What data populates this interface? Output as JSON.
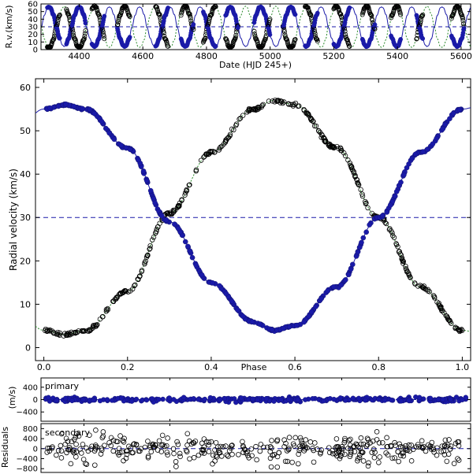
{
  "chart_data": [
    {
      "type": "scatter",
      "panel": "timeseries",
      "xlabel": "Date (HJD 245+)",
      "ylabel": "R.v.(km/s)",
      "xlim": [
        4280,
        5630
      ],
      "ylim": [
        0,
        60
      ],
      "xticks": [
        "4400",
        "4600",
        "4800",
        "5000",
        "5200",
        "5400",
        "5600"
      ],
      "yticks": [
        "0",
        "10",
        "20",
        "30",
        "40",
        "50",
        "60"
      ],
      "period_days": 95,
      "t0": 4300,
      "gamma": 30,
      "amplitude_primary": 26,
      "amplitude_secondary": 27,
      "observed_seasons": [
        [
          4300,
          4340
        ],
        [
          4360,
          4420
        ],
        [
          4440,
          4480
        ],
        [
          4520,
          4560
        ],
        [
          4640,
          4680
        ],
        [
          4720,
          4760
        ],
        [
          4790,
          4830
        ],
        [
          4860,
          4900
        ],
        [
          4950,
          5000
        ],
        [
          5040,
          5080
        ],
        [
          5110,
          5150
        ],
        [
          5200,
          5250
        ],
        [
          5290,
          5330
        ],
        [
          5380,
          5410
        ],
        [
          5460,
          5480
        ],
        [
          5570,
          5610
        ]
      ],
      "series": [
        {
          "name": "",
          "marker": "open-circle",
          "color": "#000000"
        },
        {
          "name": "",
          "marker": "filled-circle",
          "color": "#1a1aa8"
        }
      ]
    },
    {
      "type": "scatter",
      "panel": "phase",
      "xlabel": "Phase",
      "ylabel": "Radial velocity (km/s)",
      "xlim": [
        -0.02,
        1.02
      ],
      "ylim": [
        -3,
        62
      ],
      "xticks": [
        "0.0",
        "0.2",
        "0.4",
        "0.6",
        "0.8",
        "1.0"
      ],
      "yticks": [
        "0",
        "10",
        "20",
        "30",
        "40",
        "50",
        "60"
      ],
      "gamma_line": 30,
      "series": [
        {
          "name": "",
          "marker": "filled-circle",
          "color": "#1a1aa8",
          "curve": [
            [
              0.0,
              55.0
            ],
            [
              0.05,
              56.0
            ],
            [
              0.1,
              55.0
            ],
            [
              0.2,
              46.0
            ],
            [
              0.3,
              29.0
            ],
            [
              0.4,
              15.0
            ],
            [
              0.5,
              6.0
            ],
            [
              0.55,
              4.0
            ],
            [
              0.6,
              5.0
            ],
            [
              0.7,
              14.0
            ],
            [
              0.8,
              30.0
            ],
            [
              0.9,
              45.0
            ],
            [
              1.0,
              55.0
            ]
          ]
        },
        {
          "name": "",
          "marker": "open-circle",
          "color": "#000000",
          "curve": [
            [
              0.0,
              4.0
            ],
            [
              0.05,
              3.0
            ],
            [
              0.1,
              4.0
            ],
            [
              0.2,
              13.0
            ],
            [
              0.3,
              31.0
            ],
            [
              0.4,
              45.0
            ],
            [
              0.5,
              55.0
            ],
            [
              0.55,
              57.0
            ],
            [
              0.6,
              56.0
            ],
            [
              0.7,
              46.0
            ],
            [
              0.8,
              30.0
            ],
            [
              0.9,
              14.0
            ],
            [
              1.0,
              4.0
            ]
          ]
        }
      ]
    },
    {
      "type": "scatter",
      "panel": "residuals-primary",
      "label": "primary",
      "ylabel": "(m/s)",
      "ylim": [
        -700,
        700
      ],
      "yticks": [
        "400",
        "0",
        "−400"
      ],
      "scatter_ms": 45
    },
    {
      "type": "scatter",
      "panel": "residuals-secondary",
      "label": "secondary",
      "ylabel": "Residuals",
      "ylim": [
        -950,
        1000
      ],
      "yticks": [
        "800",
        "400",
        "0",
        "−400",
        "−800"
      ],
      "scatter_ms": 350
    }
  ]
}
